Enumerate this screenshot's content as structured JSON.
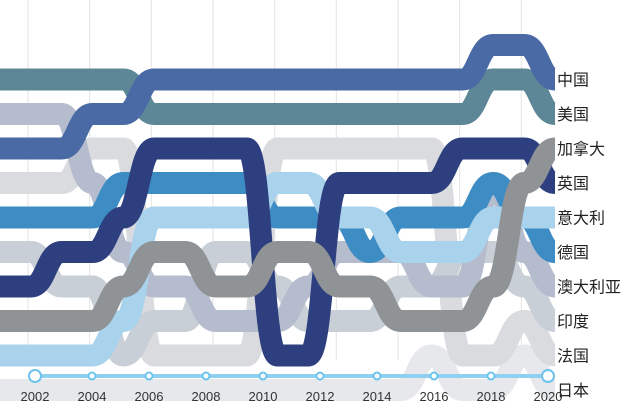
{
  "chart_data": {
    "type": "bump",
    "title": "",
    "xlabel": "",
    "ylabel": "",
    "x": [
      2002,
      2003,
      2004,
      2005,
      2006,
      2007,
      2008,
      2009,
      2010,
      2011,
      2012,
      2013,
      2014,
      2015,
      2016,
      2017,
      2018,
      2019,
      2020
    ],
    "xticks": [
      2002,
      2004,
      2006,
      2008,
      2010,
      2012,
      2014,
      2016,
      2018,
      2020
    ],
    "rank_note": "rank 1 = top",
    "grid": true,
    "timeline_slider": true,
    "series": [
      {
        "name": "中国",
        "color": "#4a6aa6",
        "ranks": [
          3,
          3,
          3,
          2,
          2,
          1,
          1,
          1,
          1,
          1,
          1,
          1,
          1,
          1,
          1,
          1,
          0,
          0,
          1
        ]
      },
      {
        "name": "美国",
        "color": "#5d8797",
        "ranks": [
          1,
          1,
          1,
          1,
          1,
          2,
          2,
          2,
          2,
          2,
          2,
          2,
          2,
          2,
          2,
          2,
          1,
          1,
          2
        ]
      },
      {
        "name": "加拿大",
        "color": "#8f9396",
        "ranks": [
          8,
          8,
          8,
          8,
          7,
          6,
          6,
          7,
          7,
          6,
          6,
          7,
          7,
          8,
          8,
          8,
          7,
          4,
          3
        ]
      },
      {
        "name": "英国",
        "color": "#2d3f7e",
        "ranks": [
          7,
          7,
          6,
          6,
          5,
          3,
          3,
          3,
          3,
          9,
          9,
          4,
          4,
          4,
          4,
          3,
          3,
          3,
          4
        ]
      },
      {
        "name": "意大利",
        "color": "#a9d3ec",
        "ranks": [
          9,
          9,
          9,
          9,
          8,
          5,
          5,
          5,
          5,
          4,
          4,
          5,
          5,
          6,
          6,
          6,
          5,
          5,
          5
        ]
      },
      {
        "name": "德国",
        "color": "#3e8cc4",
        "ranks": [
          5,
          5,
          5,
          5,
          4,
          4,
          4,
          4,
          4,
          5,
          5,
          5,
          6,
          5,
          5,
          5,
          4,
          5,
          6
        ]
      },
      {
        "name": "澳大利亚",
        "color": "#b4bcce",
        "ranks": [
          2,
          2,
          2,
          4,
          6,
          7,
          7,
          8,
          8,
          8,
          7,
          6,
          6,
          6,
          7,
          7,
          4,
          6,
          7
        ]
      },
      {
        "name": "印度",
        "color": "#c9cfd6",
        "ranks": [
          6,
          6,
          7,
          7,
          9,
          8,
          8,
          6,
          6,
          7,
          8,
          8,
          8,
          7,
          7,
          6,
          6,
          7,
          8
        ]
      },
      {
        "name": "法国",
        "color": "#d9dbdf",
        "ranks": [
          4,
          4,
          4,
          3,
          3,
          9,
          9,
          9,
          9,
          3,
          3,
          3,
          3,
          3,
          3,
          9,
          9,
          8,
          9
        ]
      },
      {
        "name": "日本",
        "color": "#e6e8ec",
        "ranks": [
          10,
          10,
          10,
          10,
          10,
          10,
          10,
          10,
          10,
          10,
          10,
          10,
          10,
          10,
          9,
          10,
          10,
          9,
          10
        ]
      }
    ]
  }
}
